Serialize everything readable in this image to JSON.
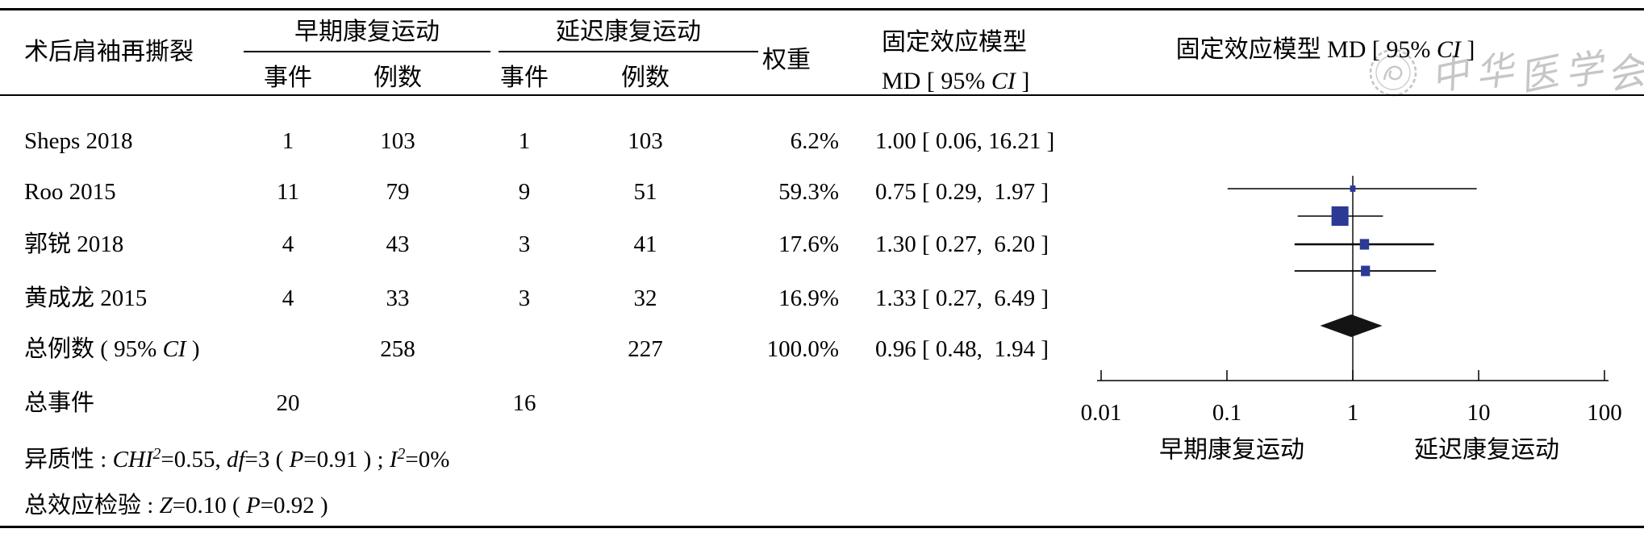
{
  "colors": {
    "marker_blue": "#2b3a94",
    "diamond_black": "#141414",
    "line_black": "#000000",
    "watermark_gray": "#c6c6c6"
  },
  "watermark": {
    "name": "中华医学会",
    "chars": [
      "中",
      "华",
      "医",
      "学",
      "会"
    ]
  },
  "table": {
    "header": {
      "study_col": "术后肩袖再撕裂",
      "group_early": "早期康复运动",
      "group_delayed": "延迟康复运动",
      "events": "事件",
      "total": "例数",
      "weight": "权重",
      "model_line1": "固定效应模型",
      "md_line2_segs": [
        {
          "t": "MD [ 95% "
        },
        {
          "t": "CI",
          "s": "i"
        },
        {
          "t": " ]"
        }
      ],
      "plot_title_segs": [
        {
          "t": "固定效应模型 MD [ 95% "
        },
        {
          "t": "CI",
          "s": "i"
        },
        {
          "t": " ]"
        }
      ]
    },
    "rows": [
      {
        "name": "Sheps 2018",
        "ev1": "1",
        "n1": "103",
        "ev2": "1",
        "n2": "103",
        "w": "6.2%",
        "md": "1.00 [ 0.06, 16.21 ]"
      },
      {
        "name": "Roo 2015",
        "ev1": "11",
        "n1": "79",
        "ev2": "9",
        "n2": "51",
        "w": "59.3%",
        "md": "0.75 [ 0.29,  1.97 ]"
      },
      {
        "name": "郭锐 2018",
        "ev1": "4",
        "n1": "43",
        "ev2": "3",
        "n2": "41",
        "w": "17.6%",
        "md": "1.30 [ 0.27,  6.20 ]"
      },
      {
        "name": "黄成龙 2015",
        "ev1": "4",
        "n1": "33",
        "ev2": "3",
        "n2": "32",
        "w": "16.9%",
        "md": "1.33 [ 0.27,  6.49 ]"
      }
    ],
    "overall_row": {
      "name_segs": [
        {
          "t": "总例数 ( 95% "
        },
        {
          "t": "CI",
          "s": "i"
        },
        {
          "t": " )"
        }
      ],
      "n1": "258",
      "n2": "227",
      "w": "100.0%",
      "md": "0.96 [ 0.48,  1.94 ]"
    },
    "total_events_row": {
      "label": "总事件",
      "ev1": "20",
      "ev2": "16"
    },
    "heterogeneity_segs": [
      {
        "t": "异质性 : "
      },
      {
        "t": "CHI",
        "s": "i"
      },
      {
        "t": "2",
        "s": "isup"
      },
      {
        "t": "=0.55, "
      },
      {
        "t": "df",
        "s": "i"
      },
      {
        "t": "=3 ( "
      },
      {
        "t": "P",
        "s": "i"
      },
      {
        "t": "=0.91 ) ; "
      },
      {
        "t": "I",
        "s": "i"
      },
      {
        "t": "2",
        "s": "isup"
      },
      {
        "t": "=0%"
      }
    ],
    "overall_test_segs": [
      {
        "t": "总效应检验 : "
      },
      {
        "t": "Z",
        "s": "i"
      },
      {
        "t": "=0.10 ( "
      },
      {
        "t": "P",
        "s": "i"
      },
      {
        "t": "=0.92 )"
      }
    ]
  },
  "chart_data": {
    "type": "forest",
    "model": "固定效应模型",
    "effect_measure": "MD [ 95% CI ]",
    "scale": "log10",
    "x_ticks": [
      0.01,
      0.1,
      1,
      10,
      100
    ],
    "x_tick_labels": [
      "0.01",
      "0.1",
      "1",
      "10",
      "100"
    ],
    "axis_left_label": "早期康复运动",
    "axis_right_label": "延迟康复运动",
    "studies": [
      {
        "name": "Sheps 2018",
        "events_early": 1,
        "total_early": 103,
        "events_delayed": 1,
        "total_delayed": 103,
        "weight_pct": 6.2,
        "est": 1.0,
        "ci_low": 0.06,
        "ci_high": 16.21
      },
      {
        "name": "Roo 2015",
        "events_early": 11,
        "total_early": 79,
        "events_delayed": 9,
        "total_delayed": 51,
        "weight_pct": 59.3,
        "est": 0.75,
        "ci_low": 0.29,
        "ci_high": 1.97
      },
      {
        "name": "郭锐 2018",
        "events_early": 4,
        "total_early": 43,
        "events_delayed": 3,
        "total_delayed": 41,
        "weight_pct": 17.6,
        "est": 1.3,
        "ci_low": 0.27,
        "ci_high": 6.2
      },
      {
        "name": "黄成龙 2015",
        "events_early": 4,
        "total_early": 33,
        "events_delayed": 3,
        "total_delayed": 32,
        "weight_pct": 16.9,
        "est": 1.33,
        "ci_low": 0.27,
        "ci_high": 6.49
      }
    ],
    "overall": {
      "label": "总例数 ( 95% CI )",
      "total_early": 258,
      "total_delayed": 227,
      "weight_pct": 100.0,
      "est": 0.96,
      "ci_low": 0.48,
      "ci_high": 1.94
    },
    "total_events": {
      "early": 20,
      "delayed": 16
    },
    "heterogeneity": "CHI2=0.55, df=3 (P=0.91); I2=0%",
    "overall_effect_test": "Z=0.10 (P=0.92)"
  }
}
